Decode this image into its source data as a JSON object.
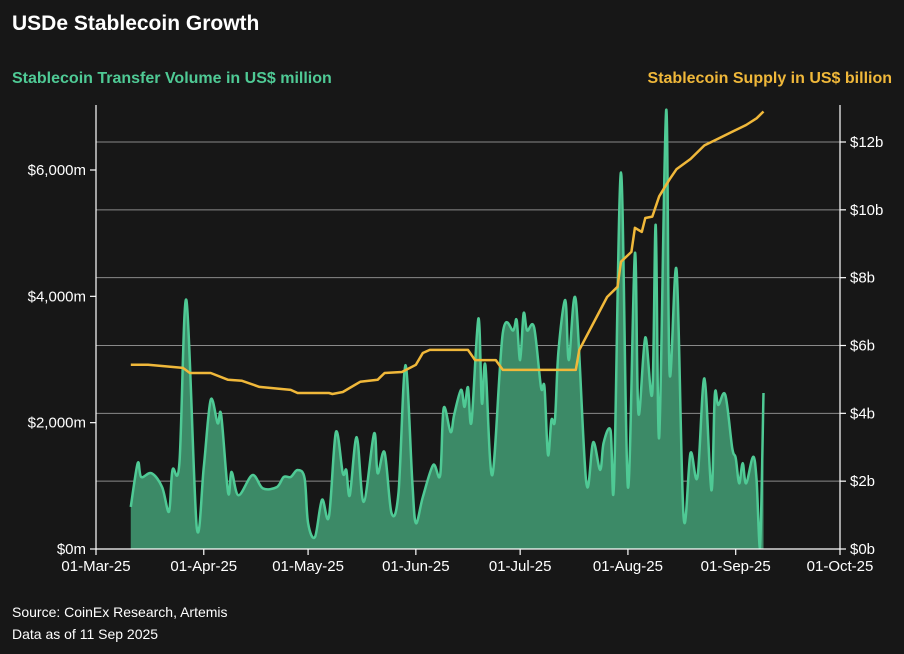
{
  "title": "USDe Stablecoin Growth",
  "source_line": "Source: CoinEx Research, Artemis",
  "asof_line": "Data as of 11 Sep 2025",
  "colors": {
    "volume_line": "#4fca95",
    "volume_fill": "#3c8a67",
    "supply_line": "#f0b83a",
    "background": "#171717",
    "grid": "#8a8a8a"
  },
  "chart_data": {
    "type": "area+line",
    "title": "USDe Stablecoin Growth",
    "left_axis_label": "Stablecoin Transfer Volume in US$ million",
    "right_axis_label": "Stablecoin Supply in US$ billion",
    "x_range": [
      "2025-03-01",
      "2025-10-01"
    ],
    "x_ticks": [
      {
        "date": "2025-03-01",
        "label": "01-Mar-25"
      },
      {
        "date": "2025-04-01",
        "label": "01-Apr-25"
      },
      {
        "date": "2025-05-01",
        "label": "01-May-25"
      },
      {
        "date": "2025-06-01",
        "label": "01-Jun-25"
      },
      {
        "date": "2025-07-01",
        "label": "01-Jul-25"
      },
      {
        "date": "2025-08-01",
        "label": "01-Aug-25"
      },
      {
        "date": "2025-09-01",
        "label": "01-Sep-25"
      },
      {
        "date": "2025-10-01",
        "label": "01-Oct-25"
      }
    ],
    "y_left": {
      "range": [
        0,
        7000
      ],
      "ticks": [
        {
          "v": 0,
          "label": "$0m"
        },
        {
          "v": 2000,
          "label": "$2,000m"
        },
        {
          "v": 4000,
          "label": "$4,000m"
        },
        {
          "v": 6000,
          "label": "$6,000m"
        }
      ]
    },
    "y_right": {
      "range": [
        0,
        13
      ],
      "ticks": [
        {
          "v": 0,
          "label": "$0b"
        },
        {
          "v": 2,
          "label": "$2b"
        },
        {
          "v": 4,
          "label": "$4b"
        },
        {
          "v": 6,
          "label": "$6b"
        },
        {
          "v": 8,
          "label": "$8b"
        },
        {
          "v": 10,
          "label": "$10b"
        },
        {
          "v": 12,
          "label": "$12b"
        }
      ]
    },
    "grid": "horizontal at right-axis ticks",
    "series": [
      {
        "name": "Stablecoin Transfer Volume in US$ million",
        "axis": "left",
        "type": "area",
        "points": [
          [
            "2025-03-11",
            665
          ],
          [
            "2025-03-13",
            1360
          ],
          [
            "2025-03-14",
            1140
          ],
          [
            "2025-03-17",
            1200
          ],
          [
            "2025-03-20",
            980
          ],
          [
            "2025-03-22",
            590
          ],
          [
            "2025-03-23",
            1250
          ],
          [
            "2025-03-25",
            1360
          ],
          [
            "2025-03-27",
            3940
          ],
          [
            "2025-03-30",
            330
          ],
          [
            "2025-04-01",
            1300
          ],
          [
            "2025-04-03",
            2360
          ],
          [
            "2025-04-05",
            1990
          ],
          [
            "2025-04-06",
            2120
          ],
          [
            "2025-04-08",
            890
          ],
          [
            "2025-04-09",
            1220
          ],
          [
            "2025-04-11",
            850
          ],
          [
            "2025-04-15",
            1170
          ],
          [
            "2025-04-18",
            960
          ],
          [
            "2025-04-22",
            980
          ],
          [
            "2025-04-24",
            1140
          ],
          [
            "2025-04-26",
            1140
          ],
          [
            "2025-04-28",
            1250
          ],
          [
            "2025-04-30",
            1120
          ],
          [
            "2025-05-01",
            410
          ],
          [
            "2025-05-03",
            190
          ],
          [
            "2025-05-05",
            780
          ],
          [
            "2025-05-07",
            510
          ],
          [
            "2025-05-09",
            1850
          ],
          [
            "2025-05-11",
            1200
          ],
          [
            "2025-05-12",
            1250
          ],
          [
            "2025-05-13",
            850
          ],
          [
            "2025-05-15",
            1770
          ],
          [
            "2025-05-17",
            745
          ],
          [
            "2025-05-20",
            1830
          ],
          [
            "2025-05-21",
            1200
          ],
          [
            "2025-05-23",
            1530
          ],
          [
            "2025-05-25",
            570
          ],
          [
            "2025-05-27",
            890
          ],
          [
            "2025-05-29",
            2910
          ],
          [
            "2025-05-31",
            1040
          ],
          [
            "2025-06-01",
            410
          ],
          [
            "2025-06-03",
            820
          ],
          [
            "2025-06-06",
            1330
          ],
          [
            "2025-06-08",
            1170
          ],
          [
            "2025-06-09",
            2230
          ],
          [
            "2025-06-11",
            1850
          ],
          [
            "2025-06-12",
            2120
          ],
          [
            "2025-06-14",
            2520
          ],
          [
            "2025-06-15",
            2250
          ],
          [
            "2025-06-16",
            2560
          ],
          [
            "2025-06-17",
            2010
          ],
          [
            "2025-06-19",
            3650
          ],
          [
            "2025-06-20",
            2310
          ],
          [
            "2025-06-21",
            2910
          ],
          [
            "2025-06-23",
            1170
          ],
          [
            "2025-06-26",
            3420
          ],
          [
            "2025-06-29",
            3460
          ],
          [
            "2025-06-30",
            3620
          ],
          [
            "2025-07-01",
            2990
          ],
          [
            "2025-07-02",
            3730
          ],
          [
            "2025-07-03",
            3460
          ],
          [
            "2025-07-05",
            3510
          ],
          [
            "2025-07-07",
            2560
          ],
          [
            "2025-07-08",
            2560
          ],
          [
            "2025-07-09",
            1490
          ],
          [
            "2025-07-10",
            2040
          ],
          [
            "2025-07-11",
            2040
          ],
          [
            "2025-07-12",
            3120
          ],
          [
            "2025-07-14",
            3940
          ],
          [
            "2025-07-15",
            2990
          ],
          [
            "2025-07-17",
            3940
          ],
          [
            "2025-07-20",
            1060
          ],
          [
            "2025-07-22",
            1690
          ],
          [
            "2025-07-24",
            1250
          ],
          [
            "2025-07-25",
            1680
          ],
          [
            "2025-07-27",
            1880
          ],
          [
            "2025-07-28",
            1040
          ],
          [
            "2025-07-30",
            5960
          ],
          [
            "2025-08-01",
            980
          ],
          [
            "2025-08-03",
            4680
          ],
          [
            "2025-08-04",
            2150
          ],
          [
            "2025-08-06",
            3350
          ],
          [
            "2025-08-08",
            2470
          ],
          [
            "2025-08-09",
            5130
          ],
          [
            "2025-08-10",
            1770
          ],
          [
            "2025-08-12",
            6950
          ],
          [
            "2025-08-13",
            2780
          ],
          [
            "2025-08-15",
            4410
          ],
          [
            "2025-08-17",
            510
          ],
          [
            "2025-08-19",
            1520
          ],
          [
            "2025-08-21",
            1140
          ],
          [
            "2025-08-23",
            2700
          ],
          [
            "2025-08-25",
            930
          ],
          [
            "2025-08-26",
            2440
          ],
          [
            "2025-08-27",
            2280
          ],
          [
            "2025-08-29",
            2440
          ],
          [
            "2025-08-31",
            1600
          ],
          [
            "2025-09-01",
            1440
          ],
          [
            "2025-09-02",
            1040
          ],
          [
            "2025-09-03",
            1360
          ],
          [
            "2025-09-04",
            1040
          ],
          [
            "2025-09-06",
            1460
          ],
          [
            "2025-09-07",
            1090
          ],
          [
            "2025-09-08",
            15
          ],
          [
            "2025-09-09",
            2470
          ]
        ]
      },
      {
        "name": "Stablecoin Supply in US$ billion",
        "axis": "right",
        "type": "line",
        "points": [
          [
            "2025-03-11",
            5.43
          ],
          [
            "2025-03-16",
            5.43
          ],
          [
            "2025-03-26",
            5.34
          ],
          [
            "2025-03-28",
            5.19
          ],
          [
            "2025-04-03",
            5.19
          ],
          [
            "2025-04-08",
            4.99
          ],
          [
            "2025-04-12",
            4.96
          ],
          [
            "2025-04-17",
            4.78
          ],
          [
            "2025-04-26",
            4.69
          ],
          [
            "2025-04-28",
            4.6
          ],
          [
            "2025-05-07",
            4.6
          ],
          [
            "2025-05-08",
            4.57
          ],
          [
            "2025-05-11",
            4.63
          ],
          [
            "2025-05-16",
            4.93
          ],
          [
            "2025-05-21",
            4.99
          ],
          [
            "2025-05-23",
            5.19
          ],
          [
            "2025-05-28",
            5.22
          ],
          [
            "2025-06-01",
            5.43
          ],
          [
            "2025-06-03",
            5.78
          ],
          [
            "2025-06-05",
            5.87
          ],
          [
            "2025-06-16",
            5.87
          ],
          [
            "2025-06-18",
            5.57
          ],
          [
            "2025-06-24",
            5.57
          ],
          [
            "2025-06-26",
            5.28
          ],
          [
            "2025-07-17",
            5.28
          ],
          [
            "2025-07-18",
            5.87
          ],
          [
            "2025-07-23",
            6.84
          ],
          [
            "2025-07-26",
            7.43
          ],
          [
            "2025-07-29",
            7.73
          ],
          [
            "2025-07-30",
            8.47
          ],
          [
            "2025-08-02",
            8.76
          ],
          [
            "2025-08-03",
            9.47
          ],
          [
            "2025-08-05",
            9.35
          ],
          [
            "2025-08-06",
            9.76
          ],
          [
            "2025-08-08",
            9.8
          ],
          [
            "2025-08-10",
            10.4
          ],
          [
            "2025-08-13",
            10.9
          ],
          [
            "2025-08-15",
            11.2
          ],
          [
            "2025-08-19",
            11.5
          ],
          [
            "2025-08-23",
            11.9
          ],
          [
            "2025-08-27",
            12.1
          ],
          [
            "2025-08-31",
            12.3
          ],
          [
            "2025-09-04",
            12.5
          ],
          [
            "2025-09-07",
            12.7
          ],
          [
            "2025-09-09",
            12.9
          ]
        ]
      }
    ]
  }
}
